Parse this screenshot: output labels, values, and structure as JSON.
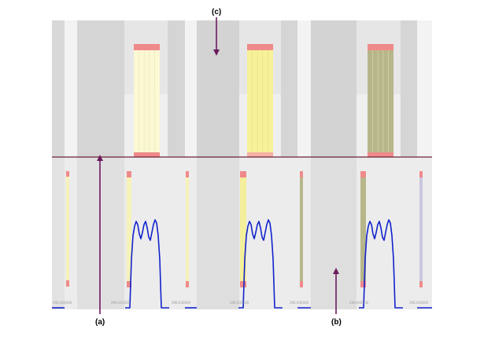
{
  "colors": {
    "page_bg": "#ffffff",
    "top_band": "#e6e6e6",
    "top_band_light": "#efefef",
    "bottom_band": "#ececec",
    "gap_column": "#d3d3d3",
    "highlight_column": "#f7f7f7",
    "pale_yellow": "#fbf8d4",
    "yellow": "#f7f29a",
    "olive": "#b7b68a",
    "pink_cap": "#ef8a8a",
    "divider_line": "#6b2136",
    "waveform": "#1122cc",
    "arrow": "#6b1a5e"
  },
  "callouts": {
    "a": "(a)",
    "b": "(b)",
    "c": "(c)"
  },
  "axis_ticks": [
    "296.020000",
    "296.025000",
    "296.030000",
    "296.035000",
    "296.040000",
    "296.045000",
    "296.050000"
  ]
}
